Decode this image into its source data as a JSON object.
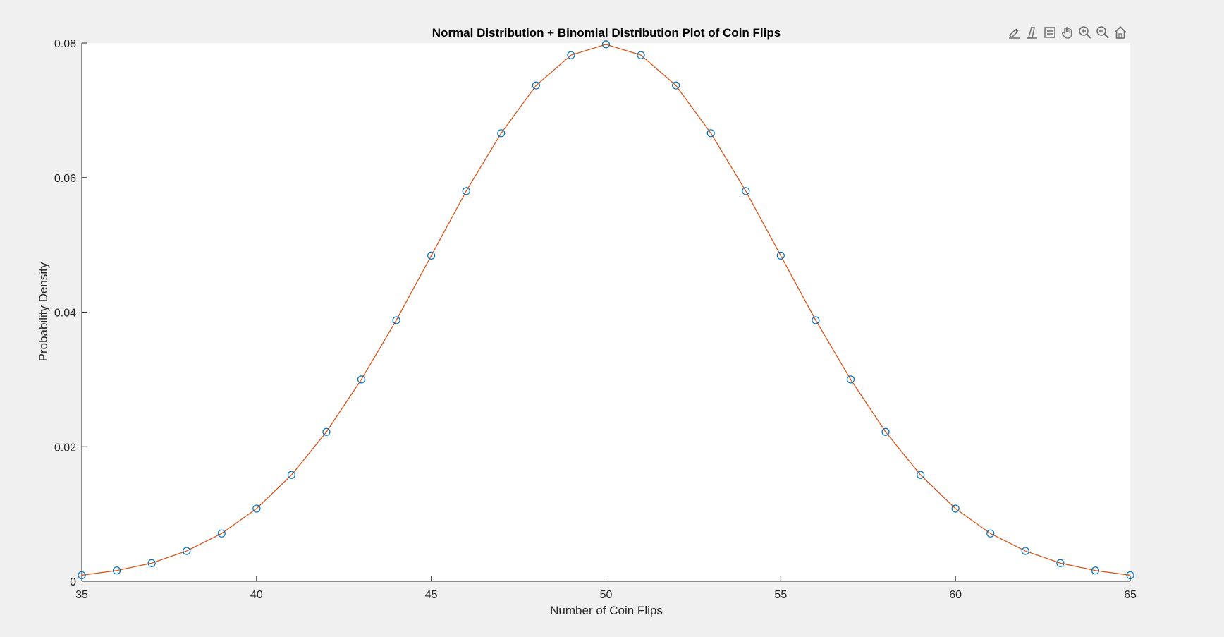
{
  "chart_data": {
    "type": "line",
    "title": "Normal Distribution + Binomial Distribution Plot of Coin Flips",
    "xlabel": "Number of Coin Flips",
    "ylabel": "Probability Density",
    "xlim": [
      35,
      65
    ],
    "ylim": [
      0,
      0.08
    ],
    "xticks": [
      35,
      40,
      45,
      50,
      55,
      60,
      65
    ],
    "xtick_labels": [
      "35",
      "40",
      "45",
      "50",
      "55",
      "60",
      "65"
    ],
    "yticks": [
      0,
      0.02,
      0.04,
      0.06,
      0.08
    ],
    "ytick_labels": [
      "0",
      "0.02",
      "0.04",
      "0.06",
      "0.08"
    ],
    "grid": false,
    "legend": "none",
    "x": [
      35,
      36,
      37,
      38,
      39,
      40,
      41,
      42,
      43,
      44,
      45,
      46,
      47,
      48,
      49,
      50,
      51,
      52,
      53,
      54,
      55,
      56,
      57,
      58,
      59,
      60,
      61,
      62,
      63,
      64,
      65
    ],
    "series": [
      {
        "style": "line",
        "color": "#d95319",
        "values": [
          0.0009,
          0.0016,
          0.0027,
          0.0045,
          0.0071,
          0.0108,
          0.0158,
          0.0222,
          0.03,
          0.0388,
          0.0484,
          0.058,
          0.0666,
          0.0737,
          0.0782,
          0.0798,
          0.0782,
          0.0737,
          0.0666,
          0.058,
          0.0484,
          0.0388,
          0.03,
          0.0222,
          0.0158,
          0.0108,
          0.0071,
          0.0045,
          0.0027,
          0.0016,
          0.0009
        ]
      },
      {
        "style": "markers-circle",
        "color": "#0072bd",
        "values": [
          0.0009,
          0.0016,
          0.0027,
          0.0045,
          0.0071,
          0.0108,
          0.0158,
          0.0222,
          0.03,
          0.0388,
          0.0484,
          0.058,
          0.0666,
          0.0737,
          0.0782,
          0.0798,
          0.0782,
          0.0737,
          0.0666,
          0.058,
          0.0484,
          0.0388,
          0.03,
          0.0222,
          0.0158,
          0.0108,
          0.0071,
          0.0045,
          0.0027,
          0.0016,
          0.0009
        ]
      }
    ]
  },
  "toolbar": {
    "icons": [
      "brush-icon",
      "data-tips-icon",
      "datatip-list-icon",
      "pan-hand-icon",
      "zoom-in-icon",
      "zoom-out-icon",
      "home-icon"
    ]
  },
  "colors": {
    "figure_bg": "#f0f0f0",
    "axes_bg": "#ffffff",
    "axis": "#262626",
    "line": "#d95319",
    "marker": "#0072bd"
  }
}
